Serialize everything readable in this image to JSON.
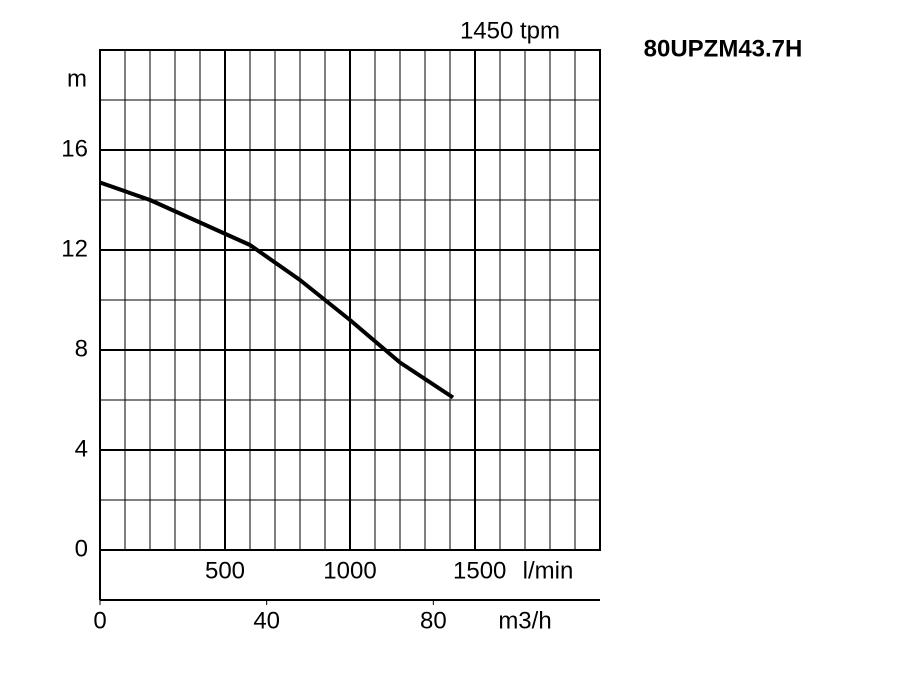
{
  "chart_data": {
    "type": "line",
    "title": "80UPZM43.7H",
    "y_label": "m",
    "x_unit": "l/min",
    "x2_unit": "m3/h",
    "xlim": [
      0,
      2000
    ],
    "xticks": [
      500,
      1000,
      1500
    ],
    "xminor": [
      100,
      200,
      300,
      400,
      600,
      700,
      800,
      900,
      1100,
      1200,
      1300,
      1400,
      1600,
      1700,
      1800,
      1900
    ],
    "x2lim": [
      0,
      120
    ],
    "x2ticks": [
      0,
      40,
      80
    ],
    "ylim": [
      0,
      20
    ],
    "yticks": [
      0,
      4,
      8,
      12,
      16
    ],
    "yminor": [
      2,
      6,
      10,
      14,
      18
    ],
    "grid": true,
    "x": [
      0,
      200,
      400,
      600,
      800,
      1000,
      1200,
      1412
    ],
    "series": [
      {
        "name": "1450 tpm",
        "color": "#000000",
        "values": [
          14.7,
          14.0,
          13.1,
          12.2,
          10.8,
          9.2,
          7.5,
          6.1
        ]
      }
    ]
  }
}
